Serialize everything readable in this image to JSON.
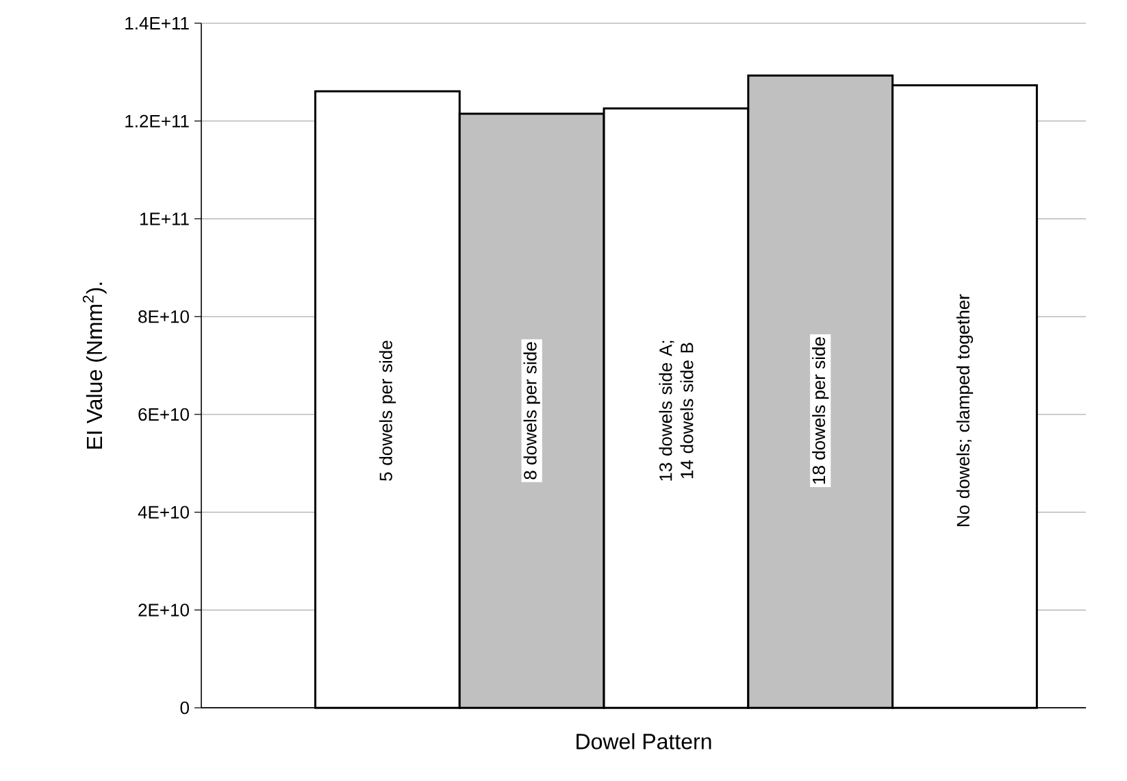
{
  "chart_data": {
    "type": "bar",
    "xlabel": "Dowel Pattern",
    "ylabel": "EI Value (Nmm$^{2}$).",
    "categories": [
      "5 dowels per side",
      "8 dowels per side",
      "13 dowels side A; 14 dowels side B",
      "18 dowels per side",
      "No dowels; clamped together"
    ],
    "values": [
      126100000000.0,
      121500000000.0,
      122600000000.0,
      129300000000.0,
      127300000000.0
    ],
    "colors": [
      "#ffffff",
      "#c0c0c0",
      "#ffffff",
      "#c0c0c0",
      "#ffffff"
    ],
    "ylim": [
      0,
      140000000000.0
    ],
    "yticks": [
      0,
      {
        "value": 20000000000.0,
        "label": "2E+10"
      },
      {
        "value": 40000000000.0,
        "label": "4E+10"
      },
      {
        "value": 60000000000.0,
        "label": "6E+10"
      },
      {
        "value": 80000000000.0,
        "label": "8E+10"
      },
      {
        "value": 100000000000.0,
        "label": "1E+11"
      },
      {
        "value": 120000000000.0,
        "label": "1.2E+11"
      },
      {
        "value": 140000000000.0,
        "label": "1.4E+11"
      }
    ],
    "grid": "y",
    "tick_labels": "y"
  }
}
